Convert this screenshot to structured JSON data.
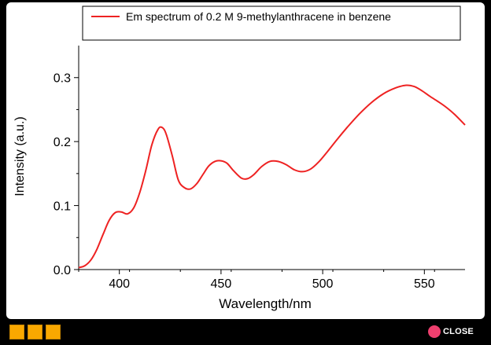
{
  "chart_data": {
    "type": "line",
    "title": "",
    "xlabel": "Wavelength/nm",
    "ylabel": "Intensity (a.u.)",
    "xlim": [
      380,
      570
    ],
    "ylim": [
      0.0,
      0.35
    ],
    "x_ticks": [
      400,
      450,
      500,
      550
    ],
    "x_tick_labels": [
      "400",
      "450",
      "500",
      "550"
    ],
    "y_ticks": [
      0.0,
      0.1,
      0.2,
      0.3
    ],
    "y_tick_labels": [
      "0.0",
      "0.1",
      "0.2",
      "0.3"
    ],
    "grid": false,
    "legend_position": "top",
    "series": [
      {
        "name": "Em spectrum of 0.2 M 9-methylanthracene in benzene",
        "color": "#ee2222",
        "x": [
          380,
          383,
          386,
          389,
          392,
          395,
          398,
          401,
          404,
          407,
          410,
          413,
          416,
          419,
          421,
          423,
          426,
          429,
          432,
          435,
          438,
          441,
          444,
          447,
          450,
          453,
          456,
          460,
          463,
          466,
          470,
          474,
          478,
          482,
          486,
          490,
          494,
          498,
          502,
          507,
          512,
          518,
          524,
          530,
          536,
          541,
          545,
          549,
          553,
          557,
          561,
          565,
          570
        ],
        "y": [
          0.003,
          0.006,
          0.015,
          0.032,
          0.055,
          0.077,
          0.089,
          0.09,
          0.087,
          0.096,
          0.12,
          0.155,
          0.195,
          0.219,
          0.222,
          0.212,
          0.178,
          0.14,
          0.128,
          0.126,
          0.134,
          0.148,
          0.162,
          0.169,
          0.17,
          0.166,
          0.155,
          0.143,
          0.142,
          0.148,
          0.161,
          0.169,
          0.169,
          0.164,
          0.156,
          0.153,
          0.157,
          0.168,
          0.183,
          0.203,
          0.222,
          0.243,
          0.261,
          0.275,
          0.284,
          0.288,
          0.286,
          0.279,
          0.27,
          0.262,
          0.253,
          0.242,
          0.226
        ]
      }
    ]
  },
  "legend": {
    "label": "Em spectrum of 0.2 M 9-methylanthracene in benzene"
  },
  "footer": {
    "close_label": "CLOSE",
    "square_color": "#f9a800",
    "close_color": "#ee3f6e"
  }
}
